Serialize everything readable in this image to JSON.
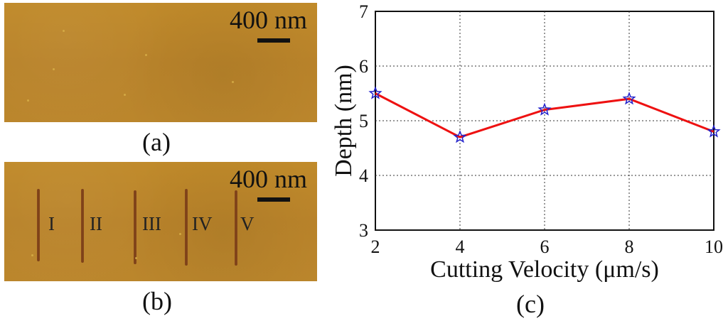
{
  "panel_a": {
    "scale_label": "400 nm",
    "caption": "(a)"
  },
  "panel_b": {
    "scale_label": "400 nm",
    "caption": "(b)",
    "groove_labels": [
      "I",
      "II",
      "III",
      "IV",
      "V"
    ]
  },
  "panel_c": {
    "caption": "(c)"
  },
  "chart_data": {
    "type": "line",
    "x": [
      2,
      4,
      6,
      8,
      10
    ],
    "series": [
      {
        "name": "Depth",
        "values": [
          5.5,
          4.7,
          5.2,
          5.4,
          4.8
        ],
        "color": "#ee1111",
        "marker_color": "#2222cc",
        "marker": "star"
      }
    ],
    "xlabel": "Cutting Velocity (μm/s)",
    "ylabel": "Depth (nm)",
    "xlim": [
      2,
      10
    ],
    "ylim": [
      3,
      7
    ],
    "xticks": [
      2,
      4,
      6,
      8,
      10
    ],
    "yticks": [
      3,
      4,
      5,
      6,
      7
    ],
    "grid": true
  }
}
